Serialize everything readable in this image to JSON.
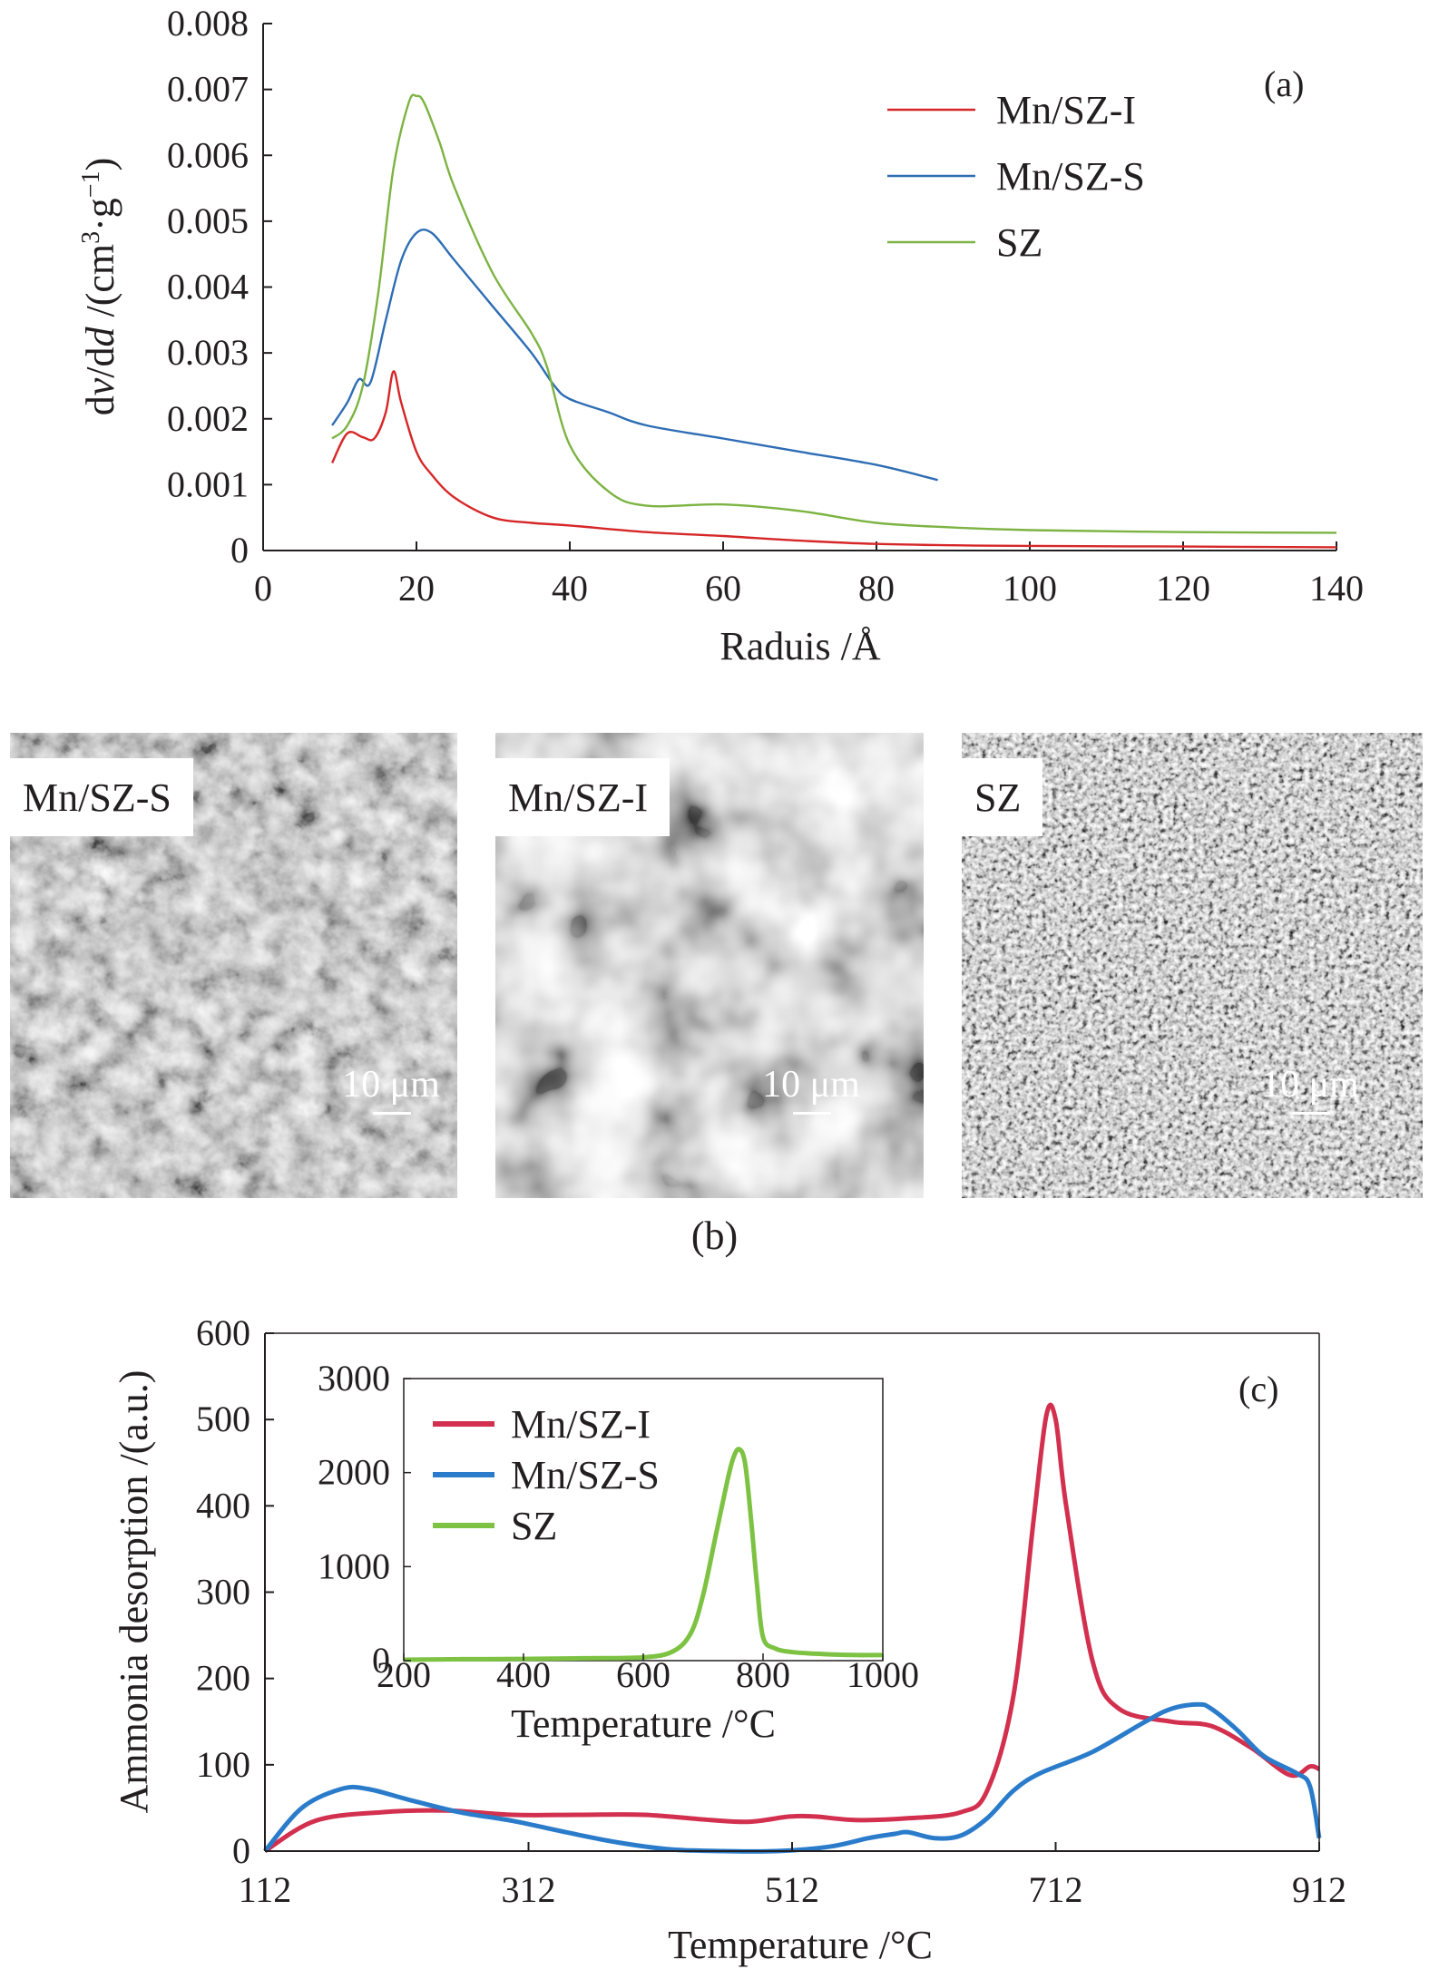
{
  "chart_data": [
    {
      "panel": "(a)",
      "type": "line",
      "xlabel": "Raduis /Å",
      "ylabel_parts": [
        "d",
        "v",
        "/d",
        "d",
        " /(cm",
        "3",
        "·g",
        "−1",
        ")"
      ],
      "xlim": [
        0,
        140
      ],
      "ylim": [
        0,
        0.008
      ],
      "xticks": [
        "0",
        "20",
        "40",
        "60",
        "80",
        "100",
        "120",
        "140"
      ],
      "yticks": [
        "0",
        "0.001",
        "0.002",
        "0.003",
        "0.004",
        "0.005",
        "0.006",
        "0.007",
        "0.008"
      ],
      "legend_position": "top-right",
      "series": [
        {
          "name": "Mn/SZ-I",
          "color": "#d62728",
          "x": [
            9,
            11,
            13,
            14.5,
            16,
            17,
            18,
            20,
            22,
            25,
            30,
            35,
            40,
            50,
            60,
            70,
            80,
            90,
            100,
            120,
            140
          ],
          "y": [
            0.00133,
            0.00178,
            0.00172,
            0.0017,
            0.0021,
            0.00272,
            0.00225,
            0.0015,
            0.00115,
            0.0008,
            0.0005,
            0.00042,
            0.00038,
            0.00028,
            0.00022,
            0.00015,
            0.0001,
            8e-05,
            7e-05,
            6e-05,
            5e-05
          ]
        },
        {
          "name": "Mn/SZ-S",
          "color": "#2e6db4",
          "x": [
            9,
            11,
            12.5,
            14,
            16,
            18,
            20,
            22,
            25,
            30,
            35,
            38,
            40,
            45,
            50,
            60,
            70,
            80,
            88
          ],
          "y": [
            0.0019,
            0.00225,
            0.0026,
            0.00255,
            0.0035,
            0.0044,
            0.00482,
            0.00482,
            0.0044,
            0.0037,
            0.003,
            0.0025,
            0.0023,
            0.0021,
            0.0019,
            0.0017,
            0.0015,
            0.0013,
            0.00107
          ]
        },
        {
          "name": "SZ",
          "color": "#7cb342",
          "x": [
            9,
            11,
            13,
            15,
            17,
            19,
            20,
            21,
            23,
            25,
            30,
            35,
            37,
            40,
            45,
            50,
            60,
            70,
            80,
            90,
            100,
            120,
            140
          ],
          "y": [
            0.0017,
            0.0019,
            0.0025,
            0.0039,
            0.0058,
            0.0068,
            0.0069,
            0.0068,
            0.0062,
            0.0055,
            0.0042,
            0.0033,
            0.0028,
            0.0016,
            0.0009,
            0.00068,
            0.0007,
            0.0006,
            0.00042,
            0.00035,
            0.00031,
            0.00028,
            0.00027
          ]
        }
      ]
    },
    {
      "panel": "(c)",
      "type": "line",
      "xlabel": "Temperature /°C",
      "ylabel": "Ammonia desorption /(a.u.)",
      "xlim": [
        112,
        912
      ],
      "ylim": [
        0,
        600
      ],
      "xticks": [
        "112",
        "312",
        "512",
        "712",
        "912"
      ],
      "yticks": [
        "0",
        "100",
        "200",
        "300",
        "400",
        "500",
        "600"
      ],
      "legend_position": "top-left (inset)",
      "series": [
        {
          "name": "Mn/SZ-I",
          "color": "#d2304e",
          "x": [
            112,
            150,
            200,
            250,
            300,
            350,
            400,
            450,
            480,
            510,
            530,
            560,
            600,
            640,
            660,
            680,
            695,
            705,
            712,
            720,
            740,
            760,
            800,
            830,
            860,
            890,
            905,
            912
          ],
          "y": [
            0,
            35,
            45,
            47,
            42,
            42,
            42,
            36,
            34,
            40,
            40,
            36,
            38,
            45,
            70,
            180,
            380,
            505,
            500,
            400,
            220,
            165,
            150,
            145,
            120,
            88,
            98,
            95
          ]
        },
        {
          "name": "Mn/SZ-S",
          "color": "#2a7ccb",
          "x": [
            112,
            140,
            170,
            190,
            220,
            260,
            300,
            340,
            380,
            420,
            460,
            500,
            540,
            570,
            590,
            600,
            620,
            640,
            660,
            680,
            700,
            740,
            780,
            800,
            820,
            830,
            850,
            870,
            895,
            905,
            912
          ],
          "y": [
            0,
            50,
            72,
            72,
            60,
            45,
            35,
            22,
            10,
            2,
            0,
            0,
            5,
            15,
            20,
            22,
            15,
            18,
            38,
            70,
            90,
            115,
            150,
            165,
            170,
            165,
            140,
            110,
            90,
            75,
            15
          ]
        }
      ],
      "inset": {
        "xlabel": "Temperature /°C",
        "xlim": [
          200,
          1000
        ],
        "ylim": [
          0,
          3000
        ],
        "xticks": [
          "200",
          "400",
          "600",
          "800",
          "1000"
        ],
        "yticks": [
          "0",
          "1000",
          "2000",
          "3000"
        ],
        "series": [
          {
            "name": "SZ",
            "color": "#7dc242",
            "x": [
              200,
              300,
              400,
              500,
              600,
              650,
              680,
              700,
              720,
              740,
              750,
              760,
              770,
              780,
              790,
              800,
              820,
              850,
              900,
              950,
              1000
            ],
            "y": [
              10,
              15,
              18,
              25,
              35,
              100,
              300,
              700,
              1300,
              1900,
              2150,
              2250,
              2100,
              1500,
              800,
              250,
              130,
              90,
              70,
              60,
              60
            ]
          }
        ]
      }
    }
  ],
  "panel_c_legend": [
    {
      "name": "Mn/SZ-I",
      "color": "#d2304e"
    },
    {
      "name": "Mn/SZ-S",
      "color": "#2a7ccb"
    },
    {
      "name": "SZ",
      "color": "#7dc242"
    }
  ],
  "panel_b": {
    "label": "(b)",
    "images": [
      {
        "label": "Mn/SZ-S",
        "scale": "10 μm"
      },
      {
        "label": "Mn/SZ-I",
        "scale": "10 μm"
      },
      {
        "label": "SZ",
        "scale": "10 μm"
      }
    ]
  }
}
